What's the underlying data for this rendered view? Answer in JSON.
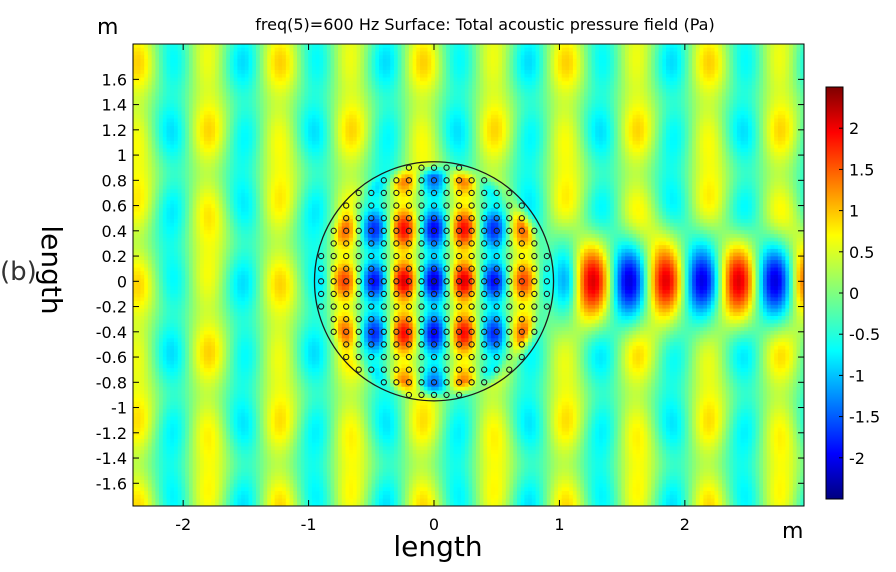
{
  "chart_data": {
    "type": "heatmap",
    "title": "freq(5)=600 Hz   Surface: Total acoustic pressure field (Pa)",
    "panel_label": "(b)",
    "xlabel": "length",
    "ylabel": "length",
    "x_unit": "m",
    "y_unit": "m",
    "xlim": [
      -2.4,
      2.95
    ],
    "ylim": [
      -1.78,
      1.88
    ],
    "x_ticks": [
      "-2",
      "-1",
      "0",
      "1",
      "2"
    ],
    "x_tick_values": [
      -2,
      -1,
      0,
      1,
      2
    ],
    "y_ticks": [
      "1.6",
      "1.4",
      "1.2",
      "1",
      "0.8",
      "0.6",
      "0.4",
      "0.2",
      "0",
      "-0.2",
      "-0.4",
      "-0.6",
      "-0.8",
      "-1",
      "-1.2",
      "-1.4",
      "-1.6"
    ],
    "y_tick_values": [
      1.6,
      1.4,
      1.2,
      1,
      0.8,
      0.6,
      0.4,
      0.2,
      0,
      -0.2,
      -0.4,
      -0.6,
      -0.8,
      -1,
      -1.2,
      -1.4,
      -1.6
    ],
    "colorbar": {
      "ticks": [
        "2",
        "1.5",
        "1",
        "0.5",
        "0",
        "-0.5",
        "-1",
        "-1.5",
        "-2"
      ],
      "tick_values": [
        2,
        1.5,
        1,
        0.5,
        0,
        -0.5,
        -1,
        -1.5,
        -2
      ],
      "range": [
        -2.5,
        2.5
      ],
      "colormap": "jet"
    },
    "circle": {
      "center": [
        0,
        0
      ],
      "radius": 0.95
    },
    "scatterers": {
      "spacing": 0.1,
      "region": "circle",
      "radius": 0.93
    },
    "field": {
      "incident_wavelength": 0.57,
      "incident_amplitude": 0.7,
      "focus_band_x": [
        0.85,
        2.9
      ],
      "focus_period": 0.58
    }
  }
}
